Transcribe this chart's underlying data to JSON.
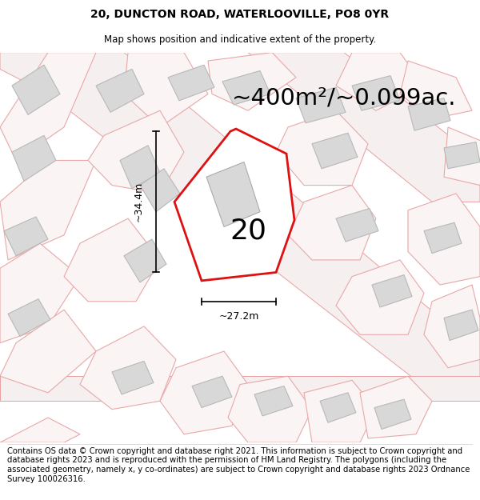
{
  "title": "20, DUNCTON ROAD, WATERLOOVILLE, PO8 0YR",
  "subtitle": "Map shows position and indicative extent of the property.",
  "area_label": "~400m²/~0.099ac.",
  "number_label": "20",
  "dim_width": "~27.2m",
  "dim_height": "~34.4m",
  "footer": "Contains OS data © Crown copyright and database right 2021. This information is subject to Crown copyright and database rights 2023 and is reproduced with the permission of HM Land Registry. The polygons (including the associated geometry, namely x, y co-ordinates) are subject to Crown copyright and database rights 2023 Ordnance Survey 100026316.",
  "bg_color": "#f5f2f2",
  "plot_fill": "#ffffff",
  "plot_edge": "#dd1111",
  "building_fill": "#d8d8d8",
  "building_edge": "#b8b8b8",
  "road_fill": "#f0e0e0",
  "road_edge": "#e8a0a0",
  "parcel_fill": "#faf4f4",
  "parcel_edge": "#e8a8a8",
  "title_fontsize": 10,
  "subtitle_fontsize": 8.5,
  "area_fontsize": 21,
  "number_fontsize": 26,
  "footer_fontsize": 7.2,
  "arrow_fontsize": 9
}
